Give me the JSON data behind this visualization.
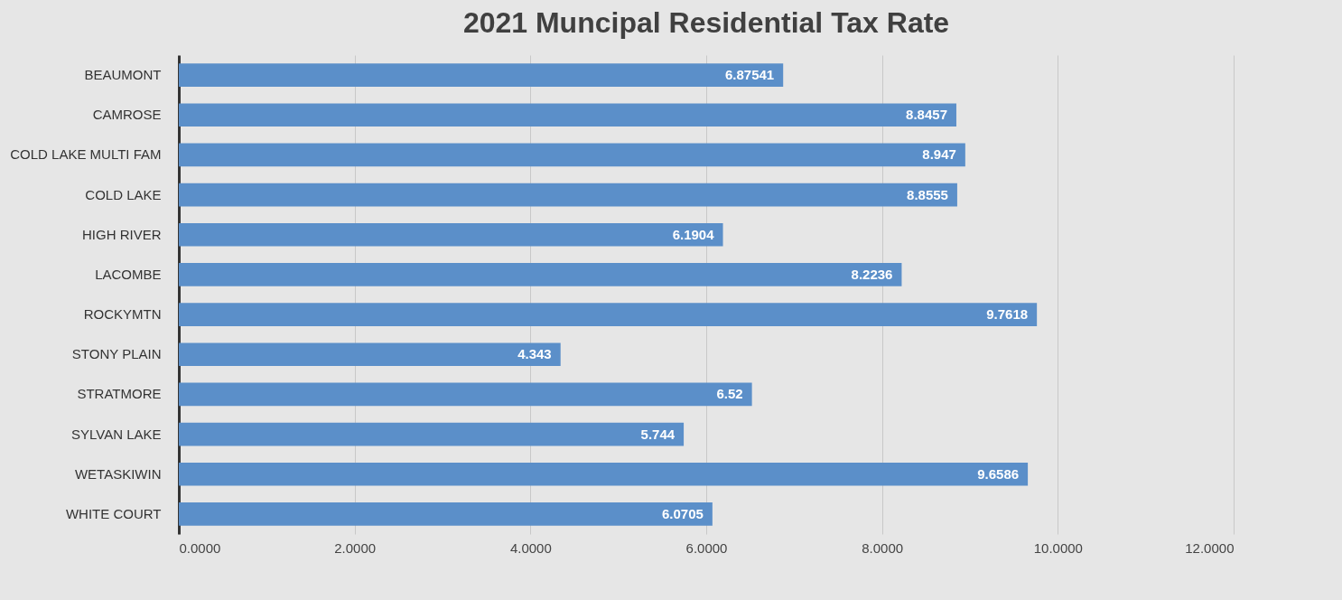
{
  "chart_data": {
    "type": "bar",
    "orientation": "horizontal",
    "title": "2021 Muncipal Residential Tax Rate",
    "categories": [
      "BEAUMONT",
      "CAMROSE",
      "COLD LAKE MULTI FAM",
      "COLD LAKE",
      "HIGH RIVER",
      "LACOMBE",
      "ROCKYMTN",
      "STONY PLAIN",
      "STRATMORE",
      "SYLVAN LAKE",
      "WETASKIWIN",
      "WHITE COURT"
    ],
    "values": [
      6.87541,
      8.8457,
      8.947,
      8.8555,
      6.1904,
      8.2236,
      9.7618,
      4.343,
      6.52,
      5.744,
      9.6586,
      6.0705
    ],
    "color": "#5b8fc9",
    "xlim": [
      0,
      12
    ],
    "xticks": [
      {
        "value": 0,
        "label": "0.0000"
      },
      {
        "value": 2,
        "label": "2.0000"
      },
      {
        "value": 4,
        "label": "4.0000"
      },
      {
        "value": 6,
        "label": "6.0000"
      },
      {
        "value": 8,
        "label": "8.0000"
      },
      {
        "value": 10,
        "label": "10.0000"
      },
      {
        "value": 12,
        "label": "12.0000"
      }
    ],
    "grid": "x",
    "data_labels": true
  }
}
